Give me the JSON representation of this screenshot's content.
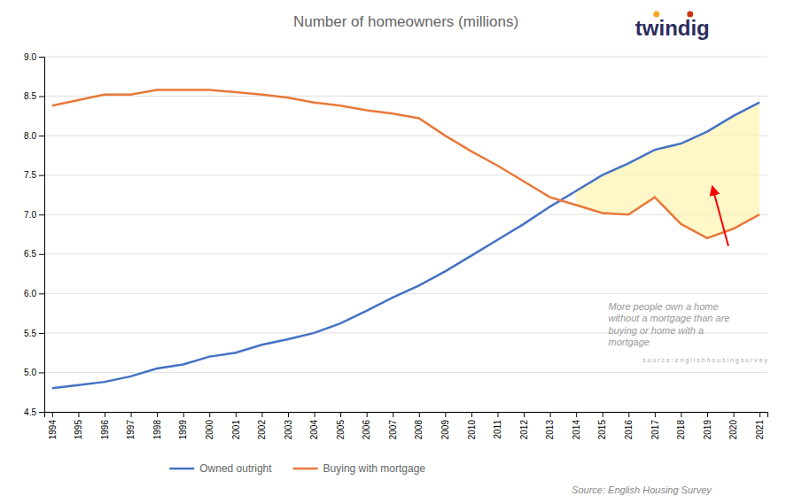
{
  "chart_data": {
    "type": "line",
    "title": "Number of homeowners (millions)",
    "x": [
      1994,
      1995,
      1996,
      1997,
      1998,
      1999,
      2000,
      2001,
      2002,
      2003,
      2004,
      2005,
      2006,
      2007,
      2008,
      2009,
      2010,
      2011,
      2012,
      2013,
      2014,
      2015,
      2016,
      2017,
      2018,
      2019,
      2020,
      2021
    ],
    "series": [
      {
        "name": "Owned outright",
        "color": "#4472C4",
        "values": [
          4.8,
          4.84,
          4.88,
          4.95,
          5.05,
          5.1,
          5.2,
          5.25,
          5.35,
          5.42,
          5.5,
          5.62,
          5.78,
          5.95,
          6.1,
          6.28,
          6.48,
          6.68,
          6.88,
          7.1,
          7.3,
          7.5,
          7.65,
          7.82,
          7.9,
          8.05,
          8.25,
          8.42
        ]
      },
      {
        "name": "Buying with mortgage",
        "color": "#E8793A",
        "values": [
          8.38,
          8.45,
          8.52,
          8.52,
          8.58,
          8.58,
          8.58,
          8.55,
          8.52,
          8.48,
          8.42,
          8.38,
          8.32,
          8.28,
          8.22,
          8.0,
          7.8,
          7.62,
          7.42,
          7.22,
          7.12,
          7.02,
          7.0,
          7.22,
          6.88,
          6.7,
          6.82,
          7.0
        ]
      }
    ],
    "xlim": [
      1993.7,
      2021.3
    ],
    "xticks": [
      1994,
      1995,
      1996,
      1997,
      1998,
      1999,
      2000,
      2001,
      2002,
      2003,
      2004,
      2005,
      2006,
      2007,
      2008,
      2009,
      2010,
      2011,
      2012,
      2013,
      2014,
      2015,
      2016,
      2017,
      2018,
      2019,
      2020,
      2021
    ],
    "ylim": [
      4.5,
      9.0
    ],
    "yticks": [
      4.5,
      {
        "value": 5,
        "label": "5.0"
      },
      5.5,
      {
        "value": 6,
        "label": "6.0"
      },
      6.5,
      {
        "value": 7,
        "label": "7.0"
      },
      7.5,
      {
        "value": 8,
        "label": "8.0"
      },
      8.5,
      {
        "value": 9,
        "label": "9.0"
      }
    ],
    "grid": true,
    "legend": "bottom",
    "annotations": [
      "More people own a home\nwithout a mortgage than are\nbuying or home with a\nmortgage",
      "s o u r c e : e n g l i s h h o u s i n g s u r v e y",
      "Source: English Housing Survey",
      "twindig"
    ]
  }
}
